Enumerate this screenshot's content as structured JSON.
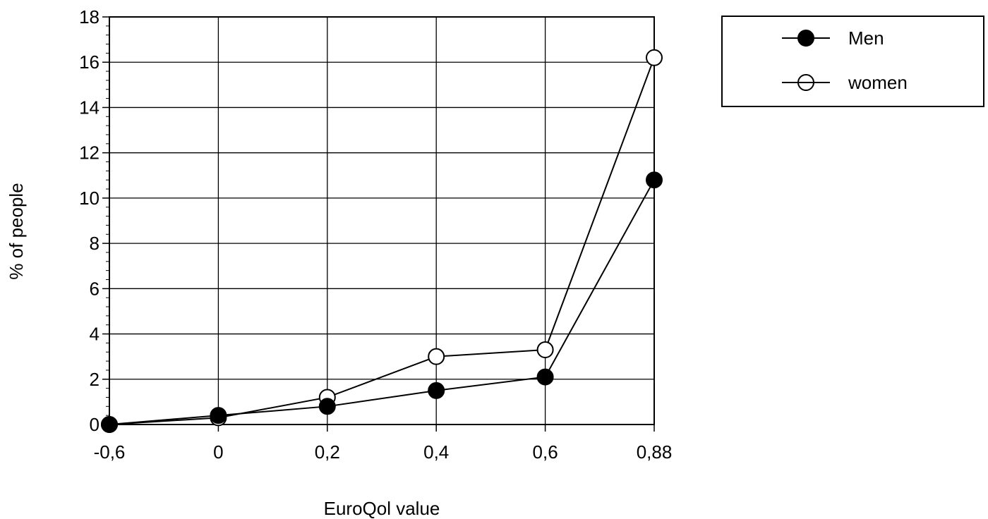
{
  "chart_data": {
    "type": "line",
    "title": "",
    "xlabel": "EuroQol value",
    "ylabel": "% of people",
    "x_categories": [
      "-0,6",
      "0",
      "0,2",
      "0,4",
      "0,6",
      "0,88"
    ],
    "y_ticks": [
      "0",
      "2",
      "4",
      "6",
      "8",
      "10",
      "12",
      "14",
      "16",
      "18"
    ],
    "ylim": [
      0,
      18
    ],
    "grid": true,
    "legend_position": "top-right",
    "series": [
      {
        "name": "Men",
        "marker": "filled-circle",
        "values": [
          0,
          0.4,
          0.8,
          1.5,
          2.1,
          10.8
        ]
      },
      {
        "name": "women",
        "marker": "open-circle",
        "values": [
          0,
          0.3,
          1.2,
          3.0,
          3.3,
          16.2
        ]
      }
    ]
  }
}
